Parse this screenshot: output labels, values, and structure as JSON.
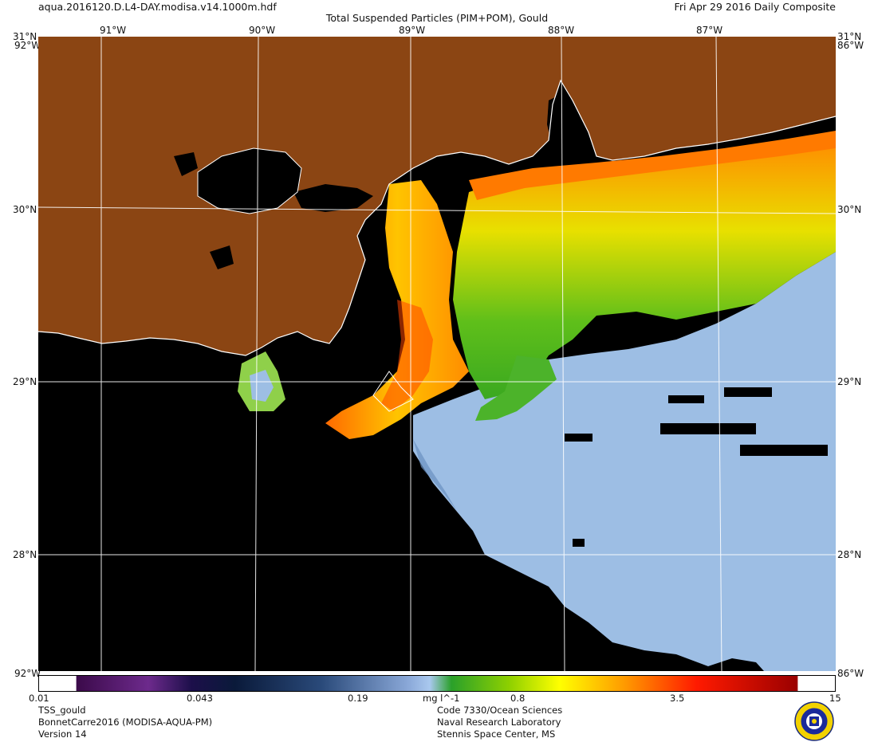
{
  "header": {
    "filename": "aqua.2016120.D.L4-DAY.modisa.v14.1000m.hdf",
    "title": "Total Suspended Particles (PIM+POM), Gould",
    "date": "Fri Apr 29 2016 Daily Composite"
  },
  "axes": {
    "lon_top": [
      "91°W",
      "90°W",
      "89°W",
      "88°W",
      "87°W"
    ],
    "lat_left": [
      "31°N",
      "30°N",
      "29°N",
      "28°N"
    ],
    "lat_right": [
      "31°N",
      "30°N",
      "29°N",
      "28°N"
    ],
    "corner_labels": [
      "92°W",
      "86°W"
    ]
  },
  "colorbar": {
    "unit": "mg l^-1",
    "ticks": [
      "0.01",
      "0.043",
      "0.19",
      "0.8",
      "3.5",
      "15"
    ]
  },
  "footer": {
    "left": [
      "TSS_gould",
      "BonnetCarre2016 (MODISA-AQUA-PM)",
      "Version 14"
    ],
    "right": [
      "Code 7330/Ocean Sciences",
      "Naval Research Laboratory",
      "Stennis Space Center, MS"
    ]
  },
  "colors": {
    "land": "#8b4513",
    "no_data": "#000000",
    "low_tss": "#9dbee4",
    "coastline": "#ffffff"
  },
  "icons": {
    "logo": "nrl-seal-icon"
  }
}
